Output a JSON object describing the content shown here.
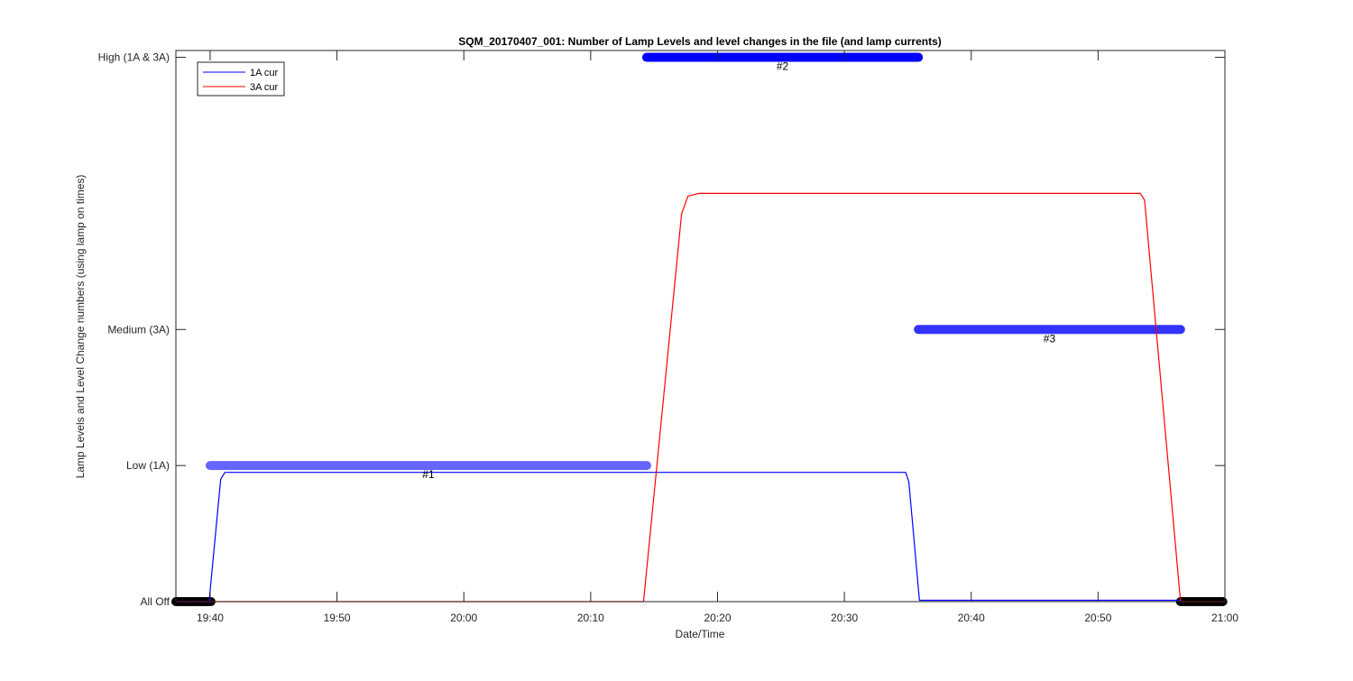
{
  "chart_data": {
    "type": "line",
    "title": "SQM_20170407_001: Number of Lamp Levels and level changes in the file (and lamp currents)",
    "xlabel": "Date/Time",
    "ylabel": "Lamp Levels and Level Change numbers (using lamp on times)",
    "xlim": [
      "19:37:18",
      "21:00:00"
    ],
    "ylim": [
      0,
      4.05
    ],
    "x_ticks": [
      "19:40",
      "19:50",
      "20:00",
      "20:10",
      "20:20",
      "20:30",
      "20:40",
      "20:50",
      "21:00"
    ],
    "y_ticks": [
      {
        "value": 0,
        "label": "All Off"
      },
      {
        "value": 1,
        "label": "Low (1A)"
      },
      {
        "value": 2,
        "label": "Medium (3A)"
      },
      {
        "value": 4,
        "label": "High (1A & 3A)"
      }
    ],
    "grid": false,
    "legend": {
      "placement": "top-left",
      "entries": [
        "1A cur",
        "3A cur"
      ]
    },
    "series": [
      {
        "name": "1A cur",
        "color": "#0000ff",
        "x": [
          "19:37:18",
          "19:39:55",
          "19:40:50",
          "19:41:10",
          "20:34:50",
          "20:35:05",
          "20:35:55",
          "20:56:30"
        ],
        "y": [
          0,
          0,
          0.9,
          0.95,
          0.95,
          0.88,
          0.01,
          0.01
        ]
      },
      {
        "name": "3A cur",
        "color": "#ff0000",
        "x": [
          "19:37:18",
          "20:14:10",
          "20:17:10",
          "20:17:40",
          "20:18:30",
          "20:53:20",
          "20:53:40",
          "20:56:30",
          "21:00:00"
        ],
        "y": [
          0,
          0,
          2.85,
          2.98,
          3.0,
          3.0,
          2.95,
          0,
          0
        ]
      }
    ],
    "level_segments": [
      {
        "level": 0,
        "start": "19:37:18",
        "end": "19:38:56",
        "color": "#000000",
        "label": ""
      },
      {
        "level": 0,
        "start": "19:39:05",
        "end": "19:40:04",
        "color": "#000000",
        "label": ""
      },
      {
        "level": 1,
        "start": "19:40:00",
        "end": "20:14:25",
        "color": "#6666ff",
        "label": "#1"
      },
      {
        "level": 4,
        "start": "20:14:25",
        "end": "20:35:50",
        "color": "#0000ff",
        "label": "#2"
      },
      {
        "level": 2,
        "start": "20:35:50",
        "end": "20:56:30",
        "color": "#3333ff",
        "label": "#3"
      },
      {
        "level": 0,
        "start": "20:56:30",
        "end": "20:59:50",
        "color": "#000000",
        "label": ""
      }
    ]
  }
}
